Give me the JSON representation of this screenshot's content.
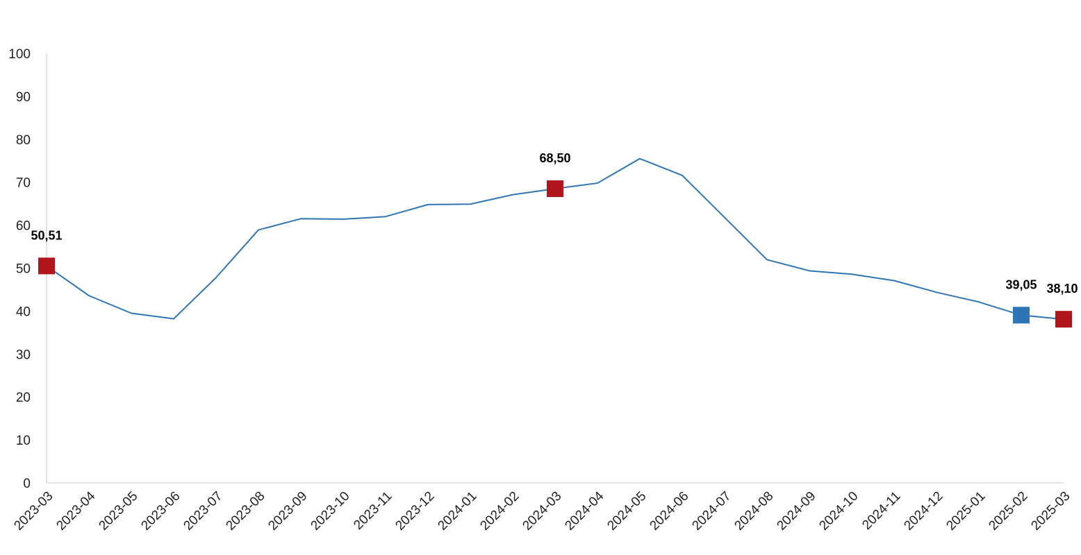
{
  "chart_data": {
    "type": "line",
    "title": "",
    "xlabel": "",
    "ylabel": "",
    "ylim": [
      0,
      100
    ],
    "yticks": [
      "0",
      "10",
      "20",
      "30",
      "40",
      "50",
      "60",
      "70",
      "80",
      "90",
      "100"
    ],
    "grid": false,
    "legend": "none",
    "categories": [
      "2023-03",
      "2023-04",
      "2023-05",
      "2023-06",
      "2023-07",
      "2023-08",
      "2023-09",
      "2023-10",
      "2023-11",
      "2023-12",
      "2024-01",
      "2024-02",
      "2024-03",
      "2024-04",
      "2024-05",
      "2024-06",
      "2024-07",
      "2024-08",
      "2024-09",
      "2024-10",
      "2024-11",
      "2024-12",
      "2025-01",
      "2025-02",
      "2025-03"
    ],
    "series": [
      {
        "values": [
          50.51,
          43.6,
          39.5,
          38.2,
          47.8,
          58.9,
          61.5,
          61.4,
          62.0,
          64.8,
          64.9,
          67.1,
          68.5,
          69.8,
          75.5,
          71.6,
          61.8,
          51.97,
          49.38,
          48.58,
          47.09,
          44.38,
          42.12,
          39.05,
          38.1
        ],
        "color": "#2e75b6"
      }
    ],
    "highlighted_points": [
      {
        "category": "2023-03",
        "value": 50.51,
        "label": "50,51",
        "color": "#b0161b"
      },
      {
        "category": "2024-03",
        "value": 68.5,
        "label": "68,50",
        "color": "#b0161b"
      },
      {
        "category": "2025-02",
        "value": 39.05,
        "label": "39,05",
        "color": "#2e75b6"
      },
      {
        "category": "2025-03",
        "value": 38.1,
        "label": "38,10",
        "color": "#b0161b"
      }
    ],
    "axis_color": "#d9d9d9"
  }
}
